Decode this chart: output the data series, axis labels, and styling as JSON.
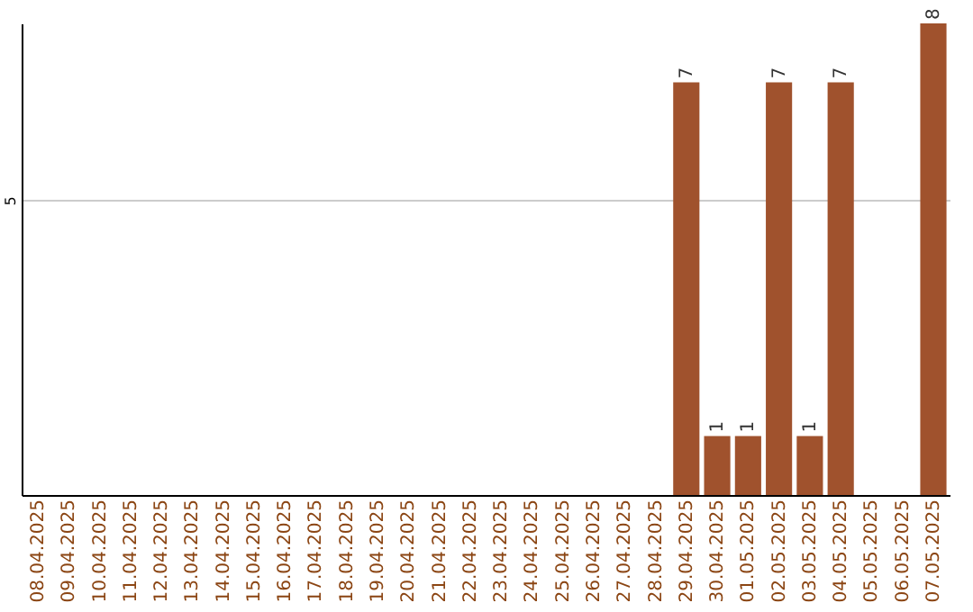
{
  "chart_data": {
    "type": "bar",
    "categories": [
      "08.04.2025",
      "09.04.2025",
      "10.04.2025",
      "11.04.2025",
      "12.04.2025",
      "13.04.2025",
      "14.04.2025",
      "15.04.2025",
      "16.04.2025",
      "17.04.2025",
      "18.04.2025",
      "19.04.2025",
      "20.04.2025",
      "21.04.2025",
      "22.04.2025",
      "23.04.2025",
      "24.04.2025",
      "25.04.2025",
      "26.04.2025",
      "27.04.2025",
      "28.04.2025",
      "29.04.2025",
      "30.04.2025",
      "01.05.2025",
      "02.05.2025",
      "03.05.2025",
      "04.05.2025",
      "05.05.2025",
      "06.05.2025",
      "07.05.2025"
    ],
    "values": [
      null,
      null,
      null,
      null,
      null,
      null,
      null,
      null,
      null,
      null,
      null,
      null,
      null,
      null,
      null,
      null,
      null,
      null,
      null,
      null,
      null,
      7,
      1,
      1,
      7,
      1,
      7,
      null,
      null,
      8
    ],
    "color": "#a0522d",
    "ylim": [
      0,
      8
    ],
    "yticks": [
      5
    ],
    "grid": "y",
    "data_labels": true
  }
}
